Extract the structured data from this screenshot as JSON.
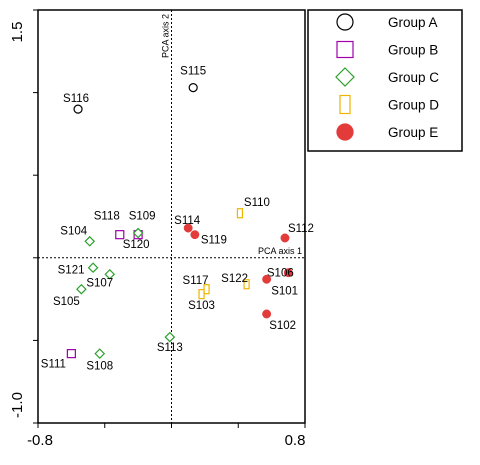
{
  "chart_data": {
    "type": "scatter",
    "title": "",
    "xlabel": "",
    "ylabel": "",
    "xlim": [
      -0.8,
      0.8
    ],
    "ylim": [
      -1.0,
      1.5
    ],
    "x_ticks": [
      "-0.8",
      "0.8"
    ],
    "y_ticks": [
      "1.5",
      "-1.0"
    ],
    "axis_lines": {
      "x_axis_label": "PCA axis 1",
      "y_axis_label": "PCA axis 2",
      "style": "dashed"
    },
    "grid": false,
    "legend_position": "top-right",
    "series": [
      {
        "name": "Group A",
        "marker": "open-circle",
        "color": "#000000",
        "points": [
          {
            "label": "S116",
            "x": -0.56,
            "y": 0.9
          },
          {
            "label": "S115",
            "x": 0.13,
            "y": 1.03
          }
        ]
      },
      {
        "name": "Group B",
        "marker": "open-square",
        "color": "#a000a8",
        "points": [
          {
            "label": "S118",
            "x": -0.31,
            "y": 0.14
          },
          {
            "label": "S109",
            "x": -0.2,
            "y": 0.14
          },
          {
            "label": "S111",
            "x": -0.6,
            "y": -0.58
          }
        ]
      },
      {
        "name": "Group C",
        "marker": "open-diamond",
        "color": "#2ca02c",
        "points": [
          {
            "label": "S104",
            "x": -0.49,
            "y": 0.1
          },
          {
            "label": "S120",
            "x": -0.2,
            "y": 0.15
          },
          {
            "label": "S121",
            "x": -0.47,
            "y": -0.06
          },
          {
            "label": "S107",
            "x": -0.37,
            "y": -0.1
          },
          {
            "label": "S105",
            "x": -0.54,
            "y": -0.19
          },
          {
            "label": "S113",
            "x": -0.01,
            "y": -0.48
          },
          {
            "label": "S108",
            "x": -0.43,
            "y": -0.58
          }
        ]
      },
      {
        "name": "Group D",
        "marker": "open-rectangle",
        "color": "#f0b400",
        "points": [
          {
            "label": "S110",
            "x": 0.41,
            "y": 0.27
          },
          {
            "label": "S117",
            "x": 0.21,
            "y": -0.19
          },
          {
            "label": "S103",
            "x": 0.18,
            "y": -0.22
          },
          {
            "label": "S122",
            "x": 0.45,
            "y": -0.16
          }
        ]
      },
      {
        "name": "Group E",
        "marker": "filled-circle",
        "color": "#e33a3a",
        "points": [
          {
            "label": "S114",
            "x": 0.1,
            "y": 0.18
          },
          {
            "label": "S119",
            "x": 0.14,
            "y": 0.14
          },
          {
            "label": "S112",
            "x": 0.68,
            "y": 0.12
          },
          {
            "label": "S106",
            "x": 0.7,
            "y": -0.09
          },
          {
            "label": "S101",
            "x": 0.57,
            "y": -0.13
          },
          {
            "label": "S102",
            "x": 0.57,
            "y": -0.34
          }
        ]
      }
    ]
  }
}
